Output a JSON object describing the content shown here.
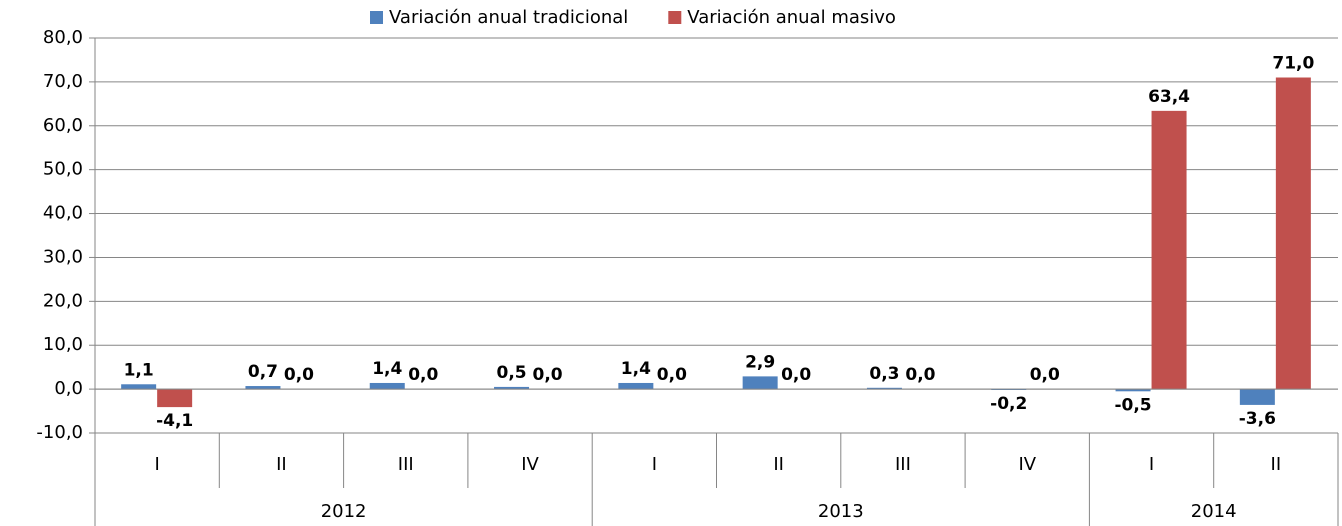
{
  "chart_data": {
    "type": "bar",
    "groups": [
      {
        "label": "2012",
        "categories": [
          "I",
          "II",
          "III",
          "IV"
        ]
      },
      {
        "label": "2013",
        "categories": [
          "I",
          "II",
          "III",
          "IV"
        ]
      },
      {
        "label": "2014",
        "categories": [
          "I",
          "II"
        ]
      }
    ],
    "series": [
      {
        "name": "Variación anual tradicional",
        "color": "#4f81bd",
        "label_color": "#2a5590",
        "values": [
          1.1,
          0.7,
          1.4,
          0.5,
          1.4,
          2.9,
          0.3,
          -0.2,
          -0.5,
          -3.6
        ],
        "value_labels": [
          "1,1",
          "0,7",
          "1,4",
          "0,5",
          "1,4",
          "2,9",
          "0,3",
          "-0,2",
          "-0,5",
          "-3,6"
        ]
      },
      {
        "name": "Variación anual masivo",
        "color": "#c0504d",
        "label_color": "#c00000",
        "values": [
          -4.1,
          0,
          0,
          0,
          0,
          0,
          0,
          0,
          63.4,
          71.0
        ],
        "value_labels": [
          "-4,1",
          "0,0",
          "0,0",
          "0,0",
          "0,0",
          "0,0",
          "0,0",
          "0,0",
          "63,4",
          "71,0"
        ]
      }
    ],
    "ylim": [
      -10,
      80
    ],
    "yticks": [
      {
        "value": -10,
        "label": "-10,0"
      },
      {
        "value": 0,
        "label": "0,0"
      },
      {
        "value": 10,
        "label": "10,0"
      },
      {
        "value": 20,
        "label": "20,0"
      },
      {
        "value": 30,
        "label": "30,0"
      },
      {
        "value": 40,
        "label": "40,0"
      },
      {
        "value": 50,
        "label": "50,0"
      },
      {
        "value": 60,
        "label": "60,0"
      },
      {
        "value": 70,
        "label": "70,0"
      },
      {
        "value": 80,
        "label": "80,0"
      }
    ],
    "grid": true,
    "legend": "top"
  }
}
